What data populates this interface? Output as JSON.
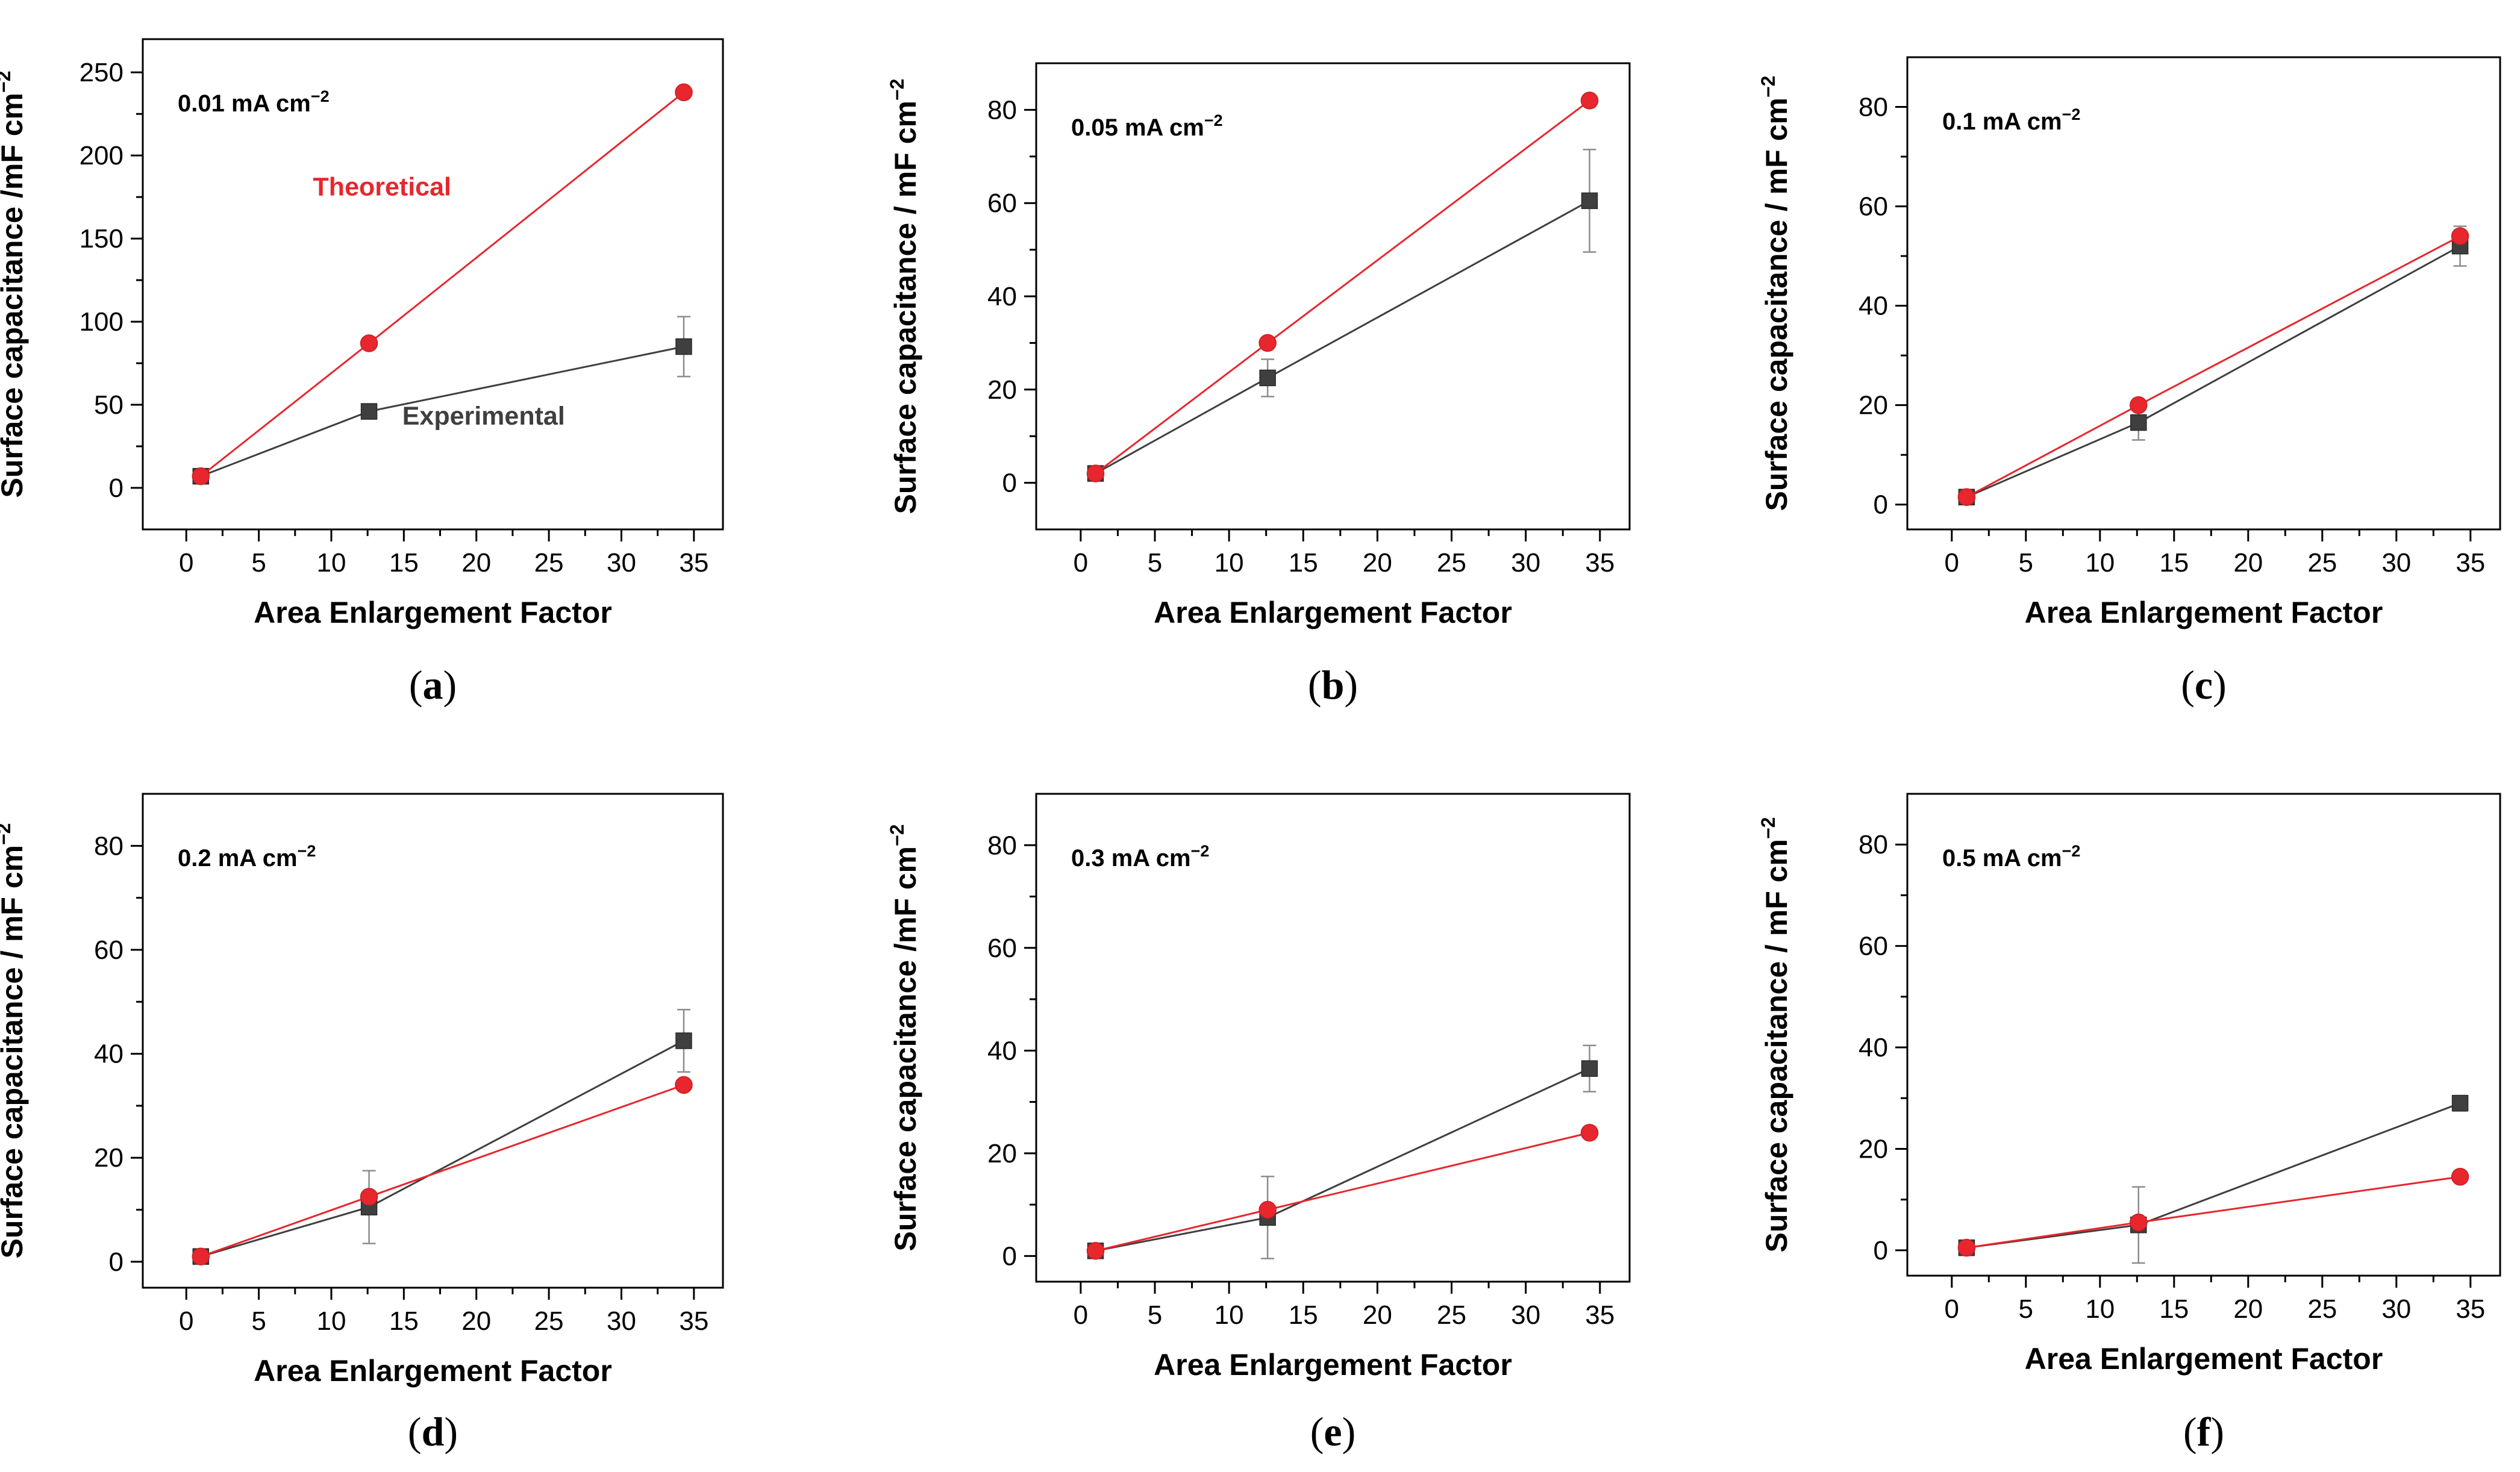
{
  "colors": {
    "theoretical": "#e8262d",
    "experimental": "#3f3f3f",
    "errorbar": "#8c8c8c"
  },
  "chart_data": [
    {
      "id": "a",
      "type": "line",
      "caption": "a",
      "panel_label": "0.01 mA cm",
      "panel_label_sup": "−2",
      "xlabel": "Area Enlargement Factor",
      "ylabel": "Surface capacitance /mF cm",
      "ylabel_sup": "−2",
      "xlim": [
        -3,
        37
      ],
      "ylim": [
        -25,
        270
      ],
      "xticks": [
        0,
        5,
        10,
        15,
        20,
        25,
        30,
        35
      ],
      "yticks": [
        0,
        50,
        100,
        150,
        200,
        250
      ],
      "annotations": [
        {
          "text": "Theoretical",
          "series": "Theoretical",
          "x": 13.5,
          "y": 176
        },
        {
          "text": "Experimental",
          "series": "Experimental",
          "x": 20.5,
          "y": 38
        }
      ],
      "series": [
        {
          "name": "Experimental",
          "marker": "square",
          "x": [
            1,
            12.6,
            34.3
          ],
          "y": [
            7,
            46,
            85
          ],
          "err": [
            0,
            0,
            18
          ]
        },
        {
          "name": "Theoretical",
          "marker": "circle",
          "x": [
            1,
            12.6,
            34.3
          ],
          "y": [
            7,
            87,
            238
          ]
        }
      ]
    },
    {
      "id": "b",
      "type": "line",
      "caption": "b",
      "panel_label": "0.05 mA cm",
      "panel_label_sup": "−2",
      "xlabel": "Area Enlargement Factor",
      "ylabel": "Surface capacitance / mF cm",
      "ylabel_sup": "−2",
      "xlim": [
        -3,
        37
      ],
      "ylim": [
        -10,
        90
      ],
      "xticks": [
        0,
        5,
        10,
        15,
        20,
        25,
        30,
        35
      ],
      "yticks": [
        0,
        20,
        40,
        60,
        80
      ],
      "series": [
        {
          "name": "Experimental",
          "marker": "square",
          "x": [
            1,
            12.6,
            34.3
          ],
          "y": [
            2,
            22.5,
            60.5
          ],
          "err": [
            0,
            4,
            11
          ]
        },
        {
          "name": "Theoretical",
          "marker": "circle",
          "x": [
            1,
            12.6,
            34.3
          ],
          "y": [
            2,
            30,
            82
          ]
        }
      ]
    },
    {
      "id": "c",
      "type": "line",
      "caption": "c",
      "panel_label": "0.1 mA cm",
      "panel_label_sup": "−2",
      "xlabel": "Area Enlargement Factor",
      "ylabel": "Surface capacitance / mF cm",
      "ylabel_sup": "−2",
      "xlim": [
        -3,
        37
      ],
      "ylim": [
        -5,
        90
      ],
      "xticks": [
        0,
        5,
        10,
        15,
        20,
        25,
        30,
        35
      ],
      "yticks": [
        0,
        20,
        40,
        60,
        80
      ],
      "series": [
        {
          "name": "Experimental",
          "marker": "square",
          "x": [
            1,
            12.6,
            34.3
          ],
          "y": [
            1.5,
            16.5,
            52
          ],
          "err": [
            0,
            3.5,
            4
          ]
        },
        {
          "name": "Theoretical",
          "marker": "circle",
          "x": [
            1,
            12.6,
            34.3
          ],
          "y": [
            1.5,
            20,
            54
          ]
        }
      ]
    },
    {
      "id": "d",
      "type": "line",
      "caption": "d",
      "panel_label": "0.2 mA cm",
      "panel_label_sup": "−2",
      "xlabel": "Area Enlargement Factor",
      "ylabel": "Surface capacitance / mF cm",
      "ylabel_sup": "−2",
      "xlim": [
        -3,
        37
      ],
      "ylim": [
        -5,
        90
      ],
      "xticks": [
        0,
        5,
        10,
        15,
        20,
        25,
        30,
        35
      ],
      "yticks": [
        0,
        20,
        40,
        60,
        80
      ],
      "series": [
        {
          "name": "Experimental",
          "marker": "square",
          "x": [
            1,
            12.6,
            34.3
          ],
          "y": [
            1,
            10.5,
            42.5
          ],
          "err": [
            0,
            7,
            6
          ]
        },
        {
          "name": "Theoretical",
          "marker": "circle",
          "x": [
            1,
            12.6,
            34.3
          ],
          "y": [
            1,
            12.5,
            34
          ]
        }
      ]
    },
    {
      "id": "e",
      "type": "line",
      "caption": "e",
      "panel_label": "0.3 mA cm",
      "panel_label_sup": "−2",
      "xlabel": "Area Enlargement Factor",
      "ylabel": "Surface capacitance /mF cm",
      "ylabel_sup": "−2",
      "xlim": [
        -3,
        37
      ],
      "ylim": [
        -5,
        90
      ],
      "xticks": [
        0,
        5,
        10,
        15,
        20,
        25,
        30,
        35
      ],
      "yticks": [
        0,
        20,
        40,
        60,
        80
      ],
      "series": [
        {
          "name": "Experimental",
          "marker": "square",
          "x": [
            1,
            12.6,
            34.3
          ],
          "y": [
            1,
            7.5,
            36.5
          ],
          "err": [
            0,
            8,
            4.5
          ]
        },
        {
          "name": "Theoretical",
          "marker": "circle",
          "x": [
            1,
            12.6,
            34.3
          ],
          "y": [
            1,
            9,
            24
          ]
        }
      ]
    },
    {
      "id": "f",
      "type": "line",
      "caption": "f",
      "panel_label": "0.5 mA cm",
      "panel_label_sup": "−2",
      "xlabel": "Area Enlargement Factor",
      "ylabel": "Surface capacitance / mF cm",
      "ylabel_sup": "−2",
      "xlim": [
        -3,
        37
      ],
      "ylim": [
        -5,
        90
      ],
      "xticks": [
        0,
        5,
        10,
        15,
        20,
        25,
        30,
        35
      ],
      "yticks": [
        0,
        20,
        40,
        60,
        80
      ],
      "series": [
        {
          "name": "Experimental",
          "marker": "square",
          "x": [
            1,
            12.6,
            34.3
          ],
          "y": [
            0.5,
            5,
            29
          ],
          "err": [
            0,
            7.5,
            1.5
          ]
        },
        {
          "name": "Theoretical",
          "marker": "circle",
          "x": [
            1,
            12.6,
            34.3
          ],
          "y": [
            0.5,
            5.5,
            14.5
          ]
        }
      ]
    }
  ]
}
